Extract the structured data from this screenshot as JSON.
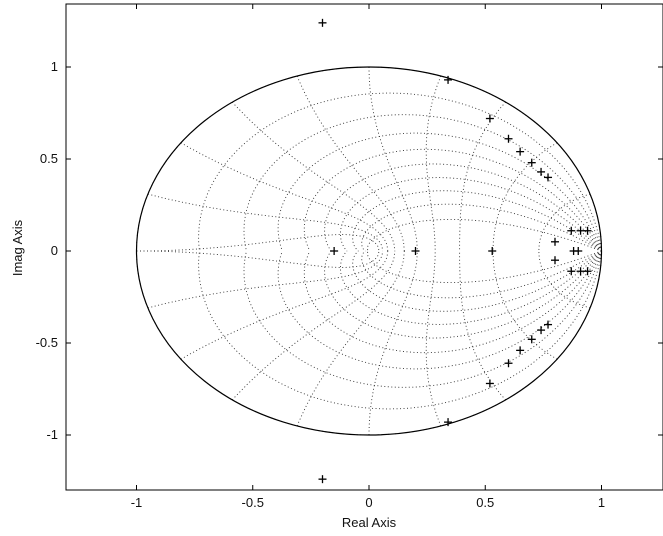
{
  "chart_data": {
    "type": "scatter",
    "title": "",
    "xlabel": "Real Axis",
    "ylabel": "Imag Axis",
    "xlim": [
      -1.3,
      1.3
    ],
    "ylim": [
      -1.3,
      1.3
    ],
    "xticks": [
      -1,
      -0.5,
      0,
      0.5,
      1
    ],
    "xtick_labels": [
      "-1",
      "-0.5",
      "0",
      "0.5",
      "1"
    ],
    "yticks": [
      -1,
      -0.5,
      0,
      0.5,
      1
    ],
    "ytick_labels": [
      "-1",
      "-0.5",
      "0",
      "0.5",
      "1"
    ],
    "grid": "z-plane (damping ratio / natural frequency curves)",
    "unit_circle": true,
    "marker": "+",
    "series": [
      {
        "values": [
          [
            -0.2,
            1.24
          ],
          [
            -0.2,
            -1.24
          ],
          [
            0.34,
            0.93
          ],
          [
            0.34,
            -0.93
          ],
          [
            0.52,
            0.72
          ],
          [
            0.52,
            -0.72
          ],
          [
            0.6,
            0.61
          ],
          [
            0.6,
            -0.61
          ],
          [
            0.65,
            0.54
          ],
          [
            0.65,
            -0.54
          ],
          [
            0.7,
            0.48
          ],
          [
            0.7,
            -0.48
          ],
          [
            0.74,
            0.43
          ],
          [
            0.74,
            -0.43
          ],
          [
            0.77,
            0.4
          ],
          [
            0.77,
            -0.4
          ],
          [
            -0.15,
            0.0
          ],
          [
            0.2,
            0.0
          ],
          [
            0.53,
            0.0
          ],
          [
            0.8,
            0.05
          ],
          [
            0.8,
            -0.05
          ],
          [
            0.87,
            0.11
          ],
          [
            0.87,
            -0.11
          ],
          [
            0.88,
            0.0
          ],
          [
            0.9,
            0.0
          ],
          [
            0.91,
            0.11
          ],
          [
            0.91,
            -0.11
          ],
          [
            0.94,
            0.11
          ],
          [
            0.94,
            -0.11
          ]
        ]
      }
    ]
  }
}
